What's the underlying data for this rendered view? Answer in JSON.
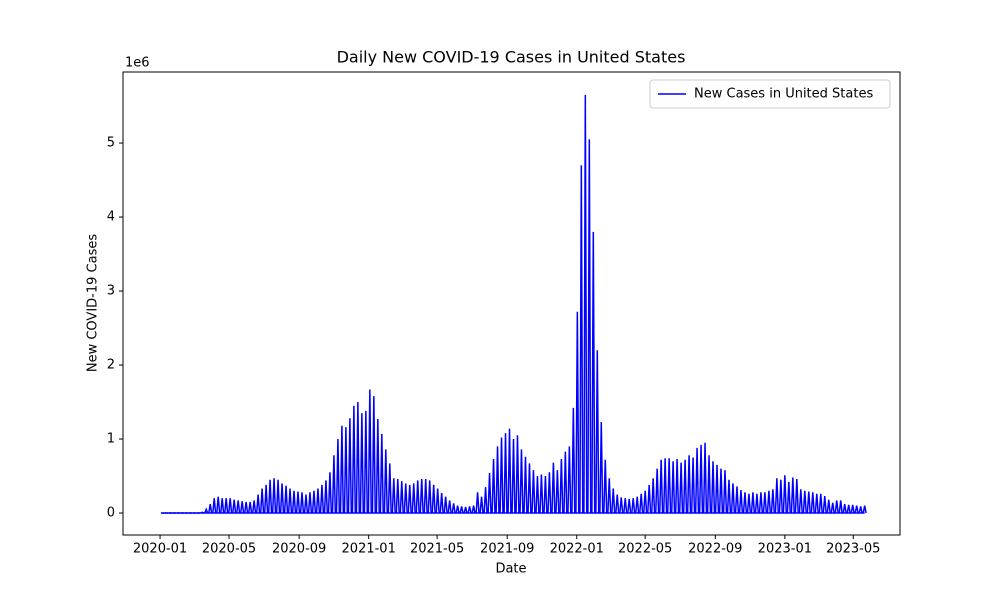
{
  "chart_data": {
    "type": "spike",
    "title": "Daily New COVID-19 Cases in United States",
    "x_label": "Date",
    "y_label": "New COVID-19 Cases",
    "y_offset_label": "1e6",
    "legend_position": "upper right",
    "xlim": [
      "2019-10-28",
      "2023-07-22"
    ],
    "xticks": [
      "2020-01",
      "2020-05",
      "2020-09",
      "2021-01",
      "2021-05",
      "2021-09",
      "2022-01",
      "2022-05",
      "2022-09",
      "2023-01",
      "2023-05"
    ],
    "ylim": [
      -297000,
      5960000
    ],
    "yticks": [
      {
        "value": 0,
        "label": "0"
      },
      {
        "value": 1000000,
        "label": "1"
      },
      {
        "value": 2000000,
        "label": "2"
      },
      {
        "value": 3000000,
        "label": "3"
      },
      {
        "value": 4000000,
        "label": "4"
      },
      {
        "value": 5000000,
        "label": "5"
      }
    ],
    "x": [
      "2020-01-05",
      "2020-01-12",
      "2020-01-19",
      "2020-01-26",
      "2020-02-02",
      "2020-02-09",
      "2020-02-16",
      "2020-02-23",
      "2020-03-01",
      "2020-03-08",
      "2020-03-15",
      "2020-03-22",
      "2020-03-29",
      "2020-04-05",
      "2020-04-12",
      "2020-04-19",
      "2020-04-26",
      "2020-05-03",
      "2020-05-10",
      "2020-05-17",
      "2020-05-24",
      "2020-05-31",
      "2020-06-07",
      "2020-06-14",
      "2020-06-21",
      "2020-06-28",
      "2020-07-05",
      "2020-07-12",
      "2020-07-19",
      "2020-07-26",
      "2020-08-02",
      "2020-08-09",
      "2020-08-16",
      "2020-08-23",
      "2020-08-30",
      "2020-09-06",
      "2020-09-13",
      "2020-09-20",
      "2020-09-27",
      "2020-10-04",
      "2020-10-11",
      "2020-10-18",
      "2020-10-25",
      "2020-11-01",
      "2020-11-08",
      "2020-11-15",
      "2020-11-22",
      "2020-11-29",
      "2020-12-06",
      "2020-12-13",
      "2020-12-20",
      "2020-12-27",
      "2021-01-03",
      "2021-01-10",
      "2021-01-17",
      "2021-01-24",
      "2021-01-31",
      "2021-02-07",
      "2021-02-14",
      "2021-02-21",
      "2021-02-28",
      "2021-03-07",
      "2021-03-14",
      "2021-03-21",
      "2021-03-28",
      "2021-04-04",
      "2021-04-11",
      "2021-04-18",
      "2021-04-25",
      "2021-05-02",
      "2021-05-09",
      "2021-05-16",
      "2021-05-23",
      "2021-05-30",
      "2021-06-06",
      "2021-06-13",
      "2021-06-20",
      "2021-06-27",
      "2021-07-04",
      "2021-07-11",
      "2021-07-18",
      "2021-07-25",
      "2021-08-01",
      "2021-08-08",
      "2021-08-15",
      "2021-08-22",
      "2021-08-29",
      "2021-09-05",
      "2021-09-12",
      "2021-09-19",
      "2021-09-26",
      "2021-10-03",
      "2021-10-10",
      "2021-10-17",
      "2021-10-24",
      "2021-10-31",
      "2021-11-07",
      "2021-11-14",
      "2021-11-21",
      "2021-11-28",
      "2021-12-05",
      "2021-12-12",
      "2021-12-19",
      "2021-12-26",
      "2022-01-02",
      "2022-01-09",
      "2022-01-16",
      "2022-01-23",
      "2022-01-30",
      "2022-02-06",
      "2022-02-13",
      "2022-02-20",
      "2022-02-27",
      "2022-03-06",
      "2022-03-13",
      "2022-03-20",
      "2022-03-27",
      "2022-04-03",
      "2022-04-10",
      "2022-04-17",
      "2022-04-24",
      "2022-05-01",
      "2022-05-08",
      "2022-05-15",
      "2022-05-22",
      "2022-05-29",
      "2022-06-05",
      "2022-06-12",
      "2022-06-19",
      "2022-06-26",
      "2022-07-03",
      "2022-07-10",
      "2022-07-17",
      "2022-07-24",
      "2022-07-31",
      "2022-08-07",
      "2022-08-14",
      "2022-08-21",
      "2022-08-28",
      "2022-09-04",
      "2022-09-11",
      "2022-09-18",
      "2022-09-25",
      "2022-10-02",
      "2022-10-09",
      "2022-10-16",
      "2022-10-23",
      "2022-10-30",
      "2022-11-06",
      "2022-11-13",
      "2022-11-20",
      "2022-11-27",
      "2022-12-04",
      "2022-12-11",
      "2022-12-18",
      "2022-12-25",
      "2023-01-01",
      "2023-01-08",
      "2023-01-15",
      "2023-01-22",
      "2023-01-29",
      "2023-02-05",
      "2023-02-12",
      "2023-02-19",
      "2023-02-26",
      "2023-03-05",
      "2023-03-12",
      "2023-03-19",
      "2023-03-26",
      "2023-04-02",
      "2023-04-09",
      "2023-04-16",
      "2023-04-23",
      "2023-04-30",
      "2023-05-07",
      "2023-05-14",
      "2023-05-21"
    ],
    "series": [
      {
        "name": "New Cases in United States",
        "color": "#0000ff",
        "values": [
          0,
          0,
          0,
          0,
          0,
          0,
          0,
          0,
          0,
          0,
          10000,
          50000,
          120000,
          200000,
          220000,
          200000,
          200000,
          200000,
          180000,
          170000,
          160000,
          150000,
          150000,
          170000,
          250000,
          330000,
          380000,
          450000,
          470000,
          450000,
          400000,
          370000,
          330000,
          300000,
          290000,
          280000,
          250000,
          280000,
          300000,
          330000,
          380000,
          440000,
          550000,
          780000,
          1000000,
          1180000,
          1160000,
          1280000,
          1450000,
          1500000,
          1350000,
          1380000,
          1670000,
          1580000,
          1270000,
          1070000,
          860000,
          670000,
          470000,
          460000,
          430000,
          400000,
          380000,
          400000,
          440000,
          460000,
          460000,
          440000,
          380000,
          330000,
          270000,
          220000,
          170000,
          130000,
          100000,
          90000,
          80000,
          90000,
          100000,
          280000,
          220000,
          350000,
          540000,
          730000,
          900000,
          1020000,
          1080000,
          1140000,
          1000000,
          1050000,
          860000,
          760000,
          670000,
          580000,
          500000,
          520000,
          500000,
          550000,
          680000,
          580000,
          730000,
          830000,
          900000,
          1420000,
          2720000,
          4700000,
          5650000,
          5050000,
          3800000,
          2200000,
          1230000,
          720000,
          470000,
          330000,
          250000,
          210000,
          200000,
          190000,
          200000,
          220000,
          260000,
          300000,
          380000,
          470000,
          600000,
          720000,
          740000,
          740000,
          700000,
          730000,
          680000,
          720000,
          780000,
          750000,
          880000,
          920000,
          950000,
          780000,
          700000,
          650000,
          600000,
          580000,
          450000,
          400000,
          360000,
          310000,
          280000,
          260000,
          280000,
          260000,
          280000,
          280000,
          300000,
          320000,
          470000,
          450000,
          510000,
          420000,
          480000,
          460000,
          320000,
          300000,
          290000,
          280000,
          260000,
          260000,
          230000,
          180000,
          140000,
          170000,
          170000,
          120000,
          110000,
          110000,
          100000,
          90000,
          100000
        ]
      }
    ]
  }
}
